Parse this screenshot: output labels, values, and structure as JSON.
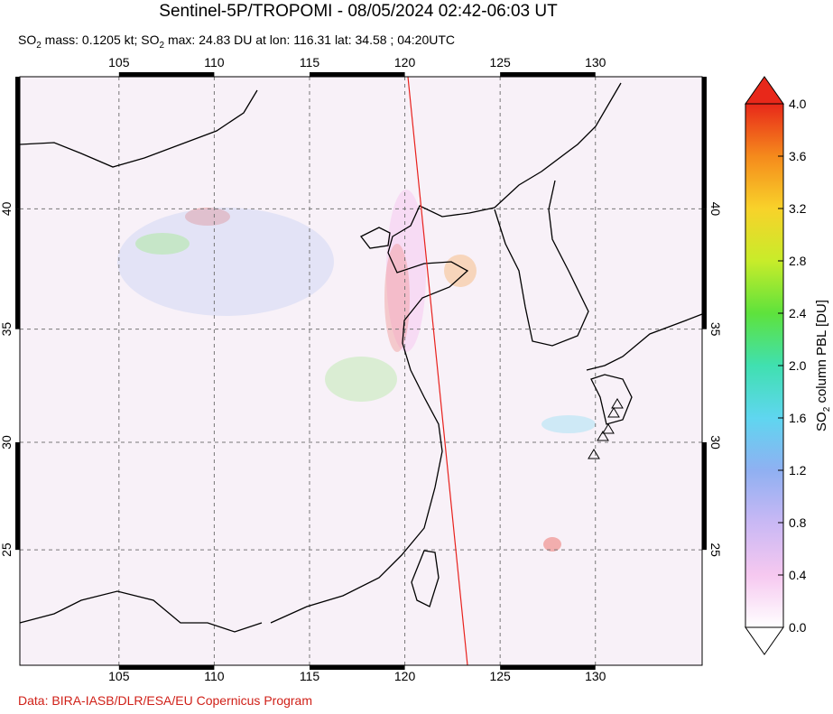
{
  "header": {
    "title": "Sentinel-5P/TROPOMI - 08/05/2024 02:42-06:03 UT",
    "subtitle": [
      "SO",
      "2",
      " mass: 0.1205 kt; SO",
      "2",
      " max: 24.83 DU at lon: 116.31 lat: 34.58 ; 04:20UTC"
    ]
  },
  "map": {
    "projection": "mercator",
    "lonlim": [
      99.8,
      135.6
    ],
    "latlim": [
      19.4,
      45.1
    ],
    "lonticks": [
      105,
      110,
      115,
      120,
      125,
      130
    ],
    "latticks": [
      25,
      30,
      35,
      40
    ],
    "grid": true,
    "background": "#f8f1f8",
    "track_color": "#e8201c"
  },
  "colorbar": {
    "label": [
      "SO",
      "2",
      " column PBL [DU]"
    ],
    "lim": [
      0,
      4
    ],
    "ticks": [
      {
        "value": 0,
        "label": "0.0"
      },
      0.4,
      0.8,
      1.2,
      1.6,
      {
        "value": 2,
        "label": "2.0"
      },
      2.4,
      2.8,
      3.2,
      3.6,
      {
        "value": 4,
        "label": "4.0"
      }
    ],
    "colors": [
      "#ffffff",
      "#f6c8f0",
      "#c9b8f4",
      "#8fb0f2",
      "#5fd6f0",
      "#40e0b0",
      "#5ee23c",
      "#c8ec2a",
      "#f8d22a",
      "#f58a1c",
      "#e8281a"
    ]
  },
  "footer": {
    "credit": "Data: BIRA-IASB/DLR/ESA/EU Copernicus Program"
  }
}
